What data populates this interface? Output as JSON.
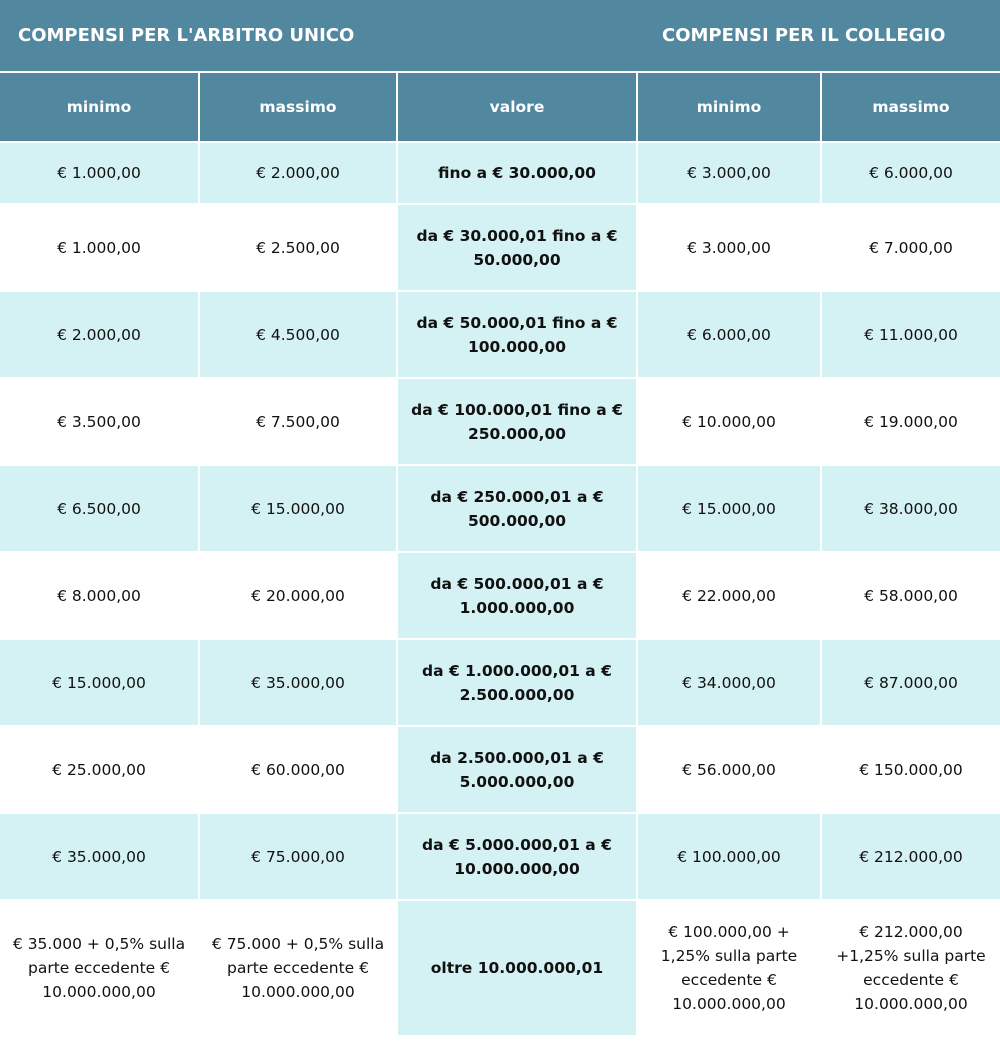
{
  "header": {
    "left_title": "COMPENSI PER L'ARBITRO UNICO",
    "right_title": "COMPENSI PER IL COLLEGIO"
  },
  "columns": [
    "minimo",
    "massimo",
    "valore",
    "minimo",
    "massimo"
  ],
  "rows": [
    [
      "€ 1.000,00",
      "€ 2.000,00",
      "fino a € 30.000,00",
      "€ 3.000,00",
      "€ 6.000,00"
    ],
    [
      "€ 1.000,00",
      "€ 2.500,00",
      "da € 30.000,01 fino a € 50.000,00",
      "€ 3.000,00",
      "€ 7.000,00"
    ],
    [
      "€ 2.000,00",
      "€ 4.500,00",
      "da € 50.000,01 fino a € 100.000,00",
      "€ 6.000,00",
      "€ 11.000,00"
    ],
    [
      "€ 3.500,00",
      "€ 7.500,00",
      "da € 100.000,01 fino a € 250.000,00",
      "€ 10.000,00",
      "€ 19.000,00"
    ],
    [
      "€ 6.500,00",
      "€ 15.000,00",
      "da € 250.000,01 a € 500.000,00",
      "€ 15.000,00",
      "€ 38.000,00"
    ],
    [
      "€ 8.000,00",
      "€ 20.000,00",
      "da € 500.000,01 a € 1.000.000,00",
      "€ 22.000,00",
      "€ 58.000,00"
    ],
    [
      "€ 15.000,00",
      "€ 35.000,00",
      "da € 1.000.000,01 a € 2.500.000,00",
      "€ 34.000,00",
      "€ 87.000,00"
    ],
    [
      "€ 25.000,00",
      "€ 60.000,00",
      "da 2.500.000,01 a € 5.000.000,00",
      "€ 56.000,00",
      "€ 150.000,00"
    ],
    [
      "€ 35.000,00",
      "€ 75.000,00",
      "da € 5.000.000,01 a € 10.000.000,00",
      "€ 100.000,00",
      "€ 212.000,00"
    ],
    [
      "€ 35.000 + 0,5% sulla parte eccedente € 10.000.000,00",
      "€ 75.000 + 0,5% sulla parte eccedente € 10.000.000,00",
      "oltre 10.000.000,01",
      "€ 100.000,00 + 1,25% sulla parte eccedente € 10.000.000,00",
      "€ 212.000,00 +1,25% sulla parte eccedente € 10.000.000,00"
    ]
  ],
  "colors": {
    "header": "#51889f",
    "highlight": "#d4f1f3"
  }
}
